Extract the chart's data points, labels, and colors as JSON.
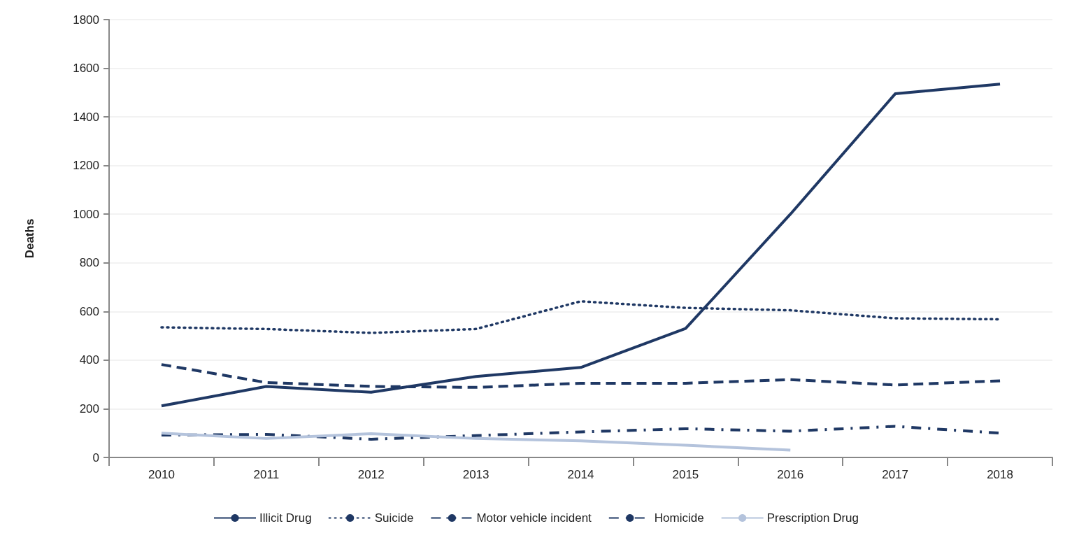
{
  "chart_data": {
    "type": "line",
    "ylabel": "Deaths",
    "categories": [
      "2010",
      "2011",
      "2012",
      "2013",
      "2014",
      "2015",
      "2016",
      "2017",
      "2018"
    ],
    "series": [
      {
        "name": "Illicit Drug",
        "color": "#1f3864",
        "line_style": "solid",
        "values": [
          212,
          292,
          268,
          333,
          370,
          530,
          1000,
          1495,
          1535
        ]
      },
      {
        "name": "Suicide",
        "color": "#1f3864",
        "line_style": "dotted",
        "values": [
          535,
          528,
          512,
          528,
          642,
          615,
          605,
          572,
          568
        ]
      },
      {
        "name": "Motor vehicle incident",
        "color": "#1f3864",
        "line_style": "dashed",
        "values": [
          382,
          308,
          292,
          288,
          305,
          305,
          320,
          298,
          315
        ]
      },
      {
        "name": "Homicide",
        "color": "#1f3864",
        "line_style": "dashdot",
        "values": [
          92,
          95,
          75,
          90,
          105,
          118,
          108,
          128,
          100
        ]
      },
      {
        "name": "Prescription Drug",
        "color": "#b4c3dc",
        "line_style": "solid",
        "values": [
          100,
          78,
          98,
          78,
          68,
          50,
          30,
          null,
          null
        ]
      }
    ],
    "ylim": [
      0,
      1800
    ],
    "yticks": [
      0,
      200,
      400,
      600,
      800,
      1000,
      1200,
      1400,
      1600,
      1800
    ],
    "grid": "y",
    "legend": "bottom",
    "marker": "none"
  }
}
